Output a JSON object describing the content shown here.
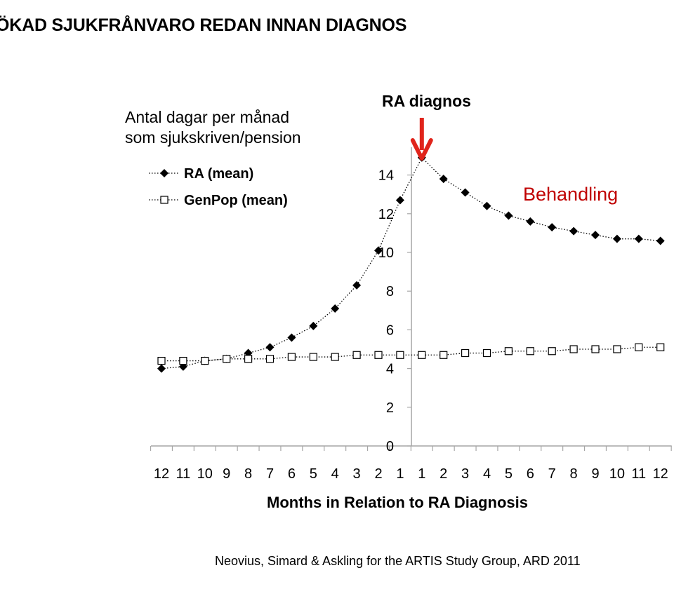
{
  "page": {
    "title": "ÖKAD SJUKFRÅNVARO REDAN INNAN DIAGNOS",
    "citation": "Neovius, Simard & Askling for the ARTIS Study Group, ARD 2011"
  },
  "chart_data": {
    "type": "line",
    "ylabel_lines": [
      "Antal dagar per månad",
      "som sjukskriven/pension"
    ],
    "xlabel": "Months in Relation to RA Diagnosis",
    "categories": [
      "12",
      "11",
      "10",
      "9",
      "8",
      "7",
      "6",
      "5",
      "4",
      "3",
      "2",
      "1",
      "1",
      "2",
      "3",
      "4",
      "5",
      "6",
      "7",
      "8",
      "9",
      "10",
      "11",
      "12"
    ],
    "ylim": [
      0,
      15
    ],
    "yticks": [
      0,
      2,
      4,
      6,
      8,
      10,
      12,
      14
    ],
    "grid": false,
    "legend_position": "top-left",
    "series": [
      {
        "name": "RA (mean)",
        "marker": "filled-diamond",
        "color": "#000000",
        "values": [
          4.0,
          4.1,
          4.4,
          4.5,
          4.8,
          5.1,
          5.6,
          6.2,
          7.1,
          8.3,
          10.1,
          12.7,
          14.9,
          13.8,
          13.1,
          12.4,
          11.9,
          11.6,
          11.3,
          11.1,
          10.9,
          10.7,
          10.7,
          10.6
        ]
      },
      {
        "name": "GenPop (mean)",
        "marker": "open-square",
        "color": "#000000",
        "values": [
          4.4,
          4.4,
          4.4,
          4.5,
          4.5,
          4.5,
          4.6,
          4.6,
          4.6,
          4.7,
          4.7,
          4.7,
          4.7,
          4.7,
          4.8,
          4.8,
          4.9,
          4.9,
          4.9,
          5.0,
          5.0,
          5.0,
          5.1,
          5.1
        ]
      }
    ],
    "annotations": {
      "diagnosis_label": "RA diagnos",
      "diagnosis_arrow_color": "#e0241b",
      "diagnosis_index": 12,
      "treatment_label": "Behandling",
      "treatment_color": "#c00000"
    }
  }
}
